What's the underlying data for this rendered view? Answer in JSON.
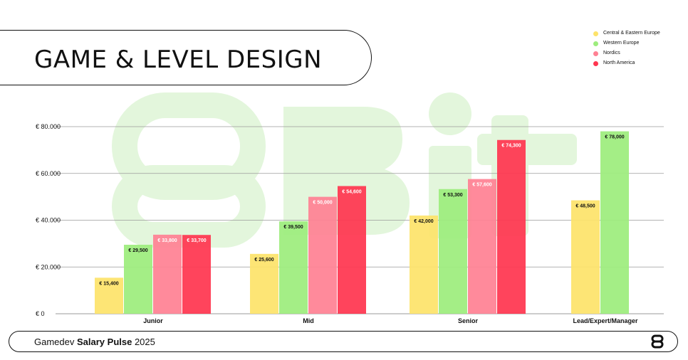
{
  "header": {
    "title": "GAME & LEVEL DESIGN"
  },
  "footer": {
    "prefix": "Gamedev",
    "bold": "Salary Pulse",
    "year": "2025"
  },
  "watermark": {
    "text": "8Bit",
    "color": "#e3f6dc"
  },
  "chart_data": {
    "type": "bar",
    "title": "GAME & LEVEL DESIGN",
    "xlabel": "",
    "ylabel": "",
    "categories": [
      "Junior",
      "Mid",
      "Senior",
      "Lead/Expert/Manager"
    ],
    "ylim": [
      0,
      80000
    ],
    "yticks": [
      {
        "value": 0,
        "label": "€ 0"
      },
      {
        "value": 20000,
        "label": "€ 20.000"
      },
      {
        "value": 40000,
        "label": "€ 40.000"
      },
      {
        "value": 60000,
        "label": "€ 60.000"
      },
      {
        "value": 80000,
        "label": "€ 80.000"
      }
    ],
    "grid": true,
    "legend_position": "top-right",
    "series": [
      {
        "name": "Central & Eastern Europe",
        "color": "#fde36a",
        "values": [
          15400,
          25600,
          42000,
          48500
        ],
        "labels": [
          "€ 15,400",
          "€ 25,600",
          "€ 42,000",
          "€ 48,500"
        ]
      },
      {
        "name": "Western Europe",
        "color": "#9ded7d",
        "values": [
          29500,
          39500,
          53300,
          78000
        ],
        "labels": [
          "€ 29,500",
          "€ 39,500",
          "€ 53,300",
          "€ 78,000"
        ]
      },
      {
        "name": "Nordics",
        "color": "#ff8193",
        "values": [
          33800,
          50000,
          57600,
          null
        ],
        "labels": [
          "€ 33,800",
          "€ 50,000",
          "€ 57,600",
          null
        ]
      },
      {
        "name": "North America",
        "color": "#ff3650",
        "values": [
          33700,
          54600,
          74300,
          null
        ],
        "labels": [
          "€ 33,700",
          "€ 54,600",
          "€ 74,300",
          null
        ]
      }
    ]
  }
}
